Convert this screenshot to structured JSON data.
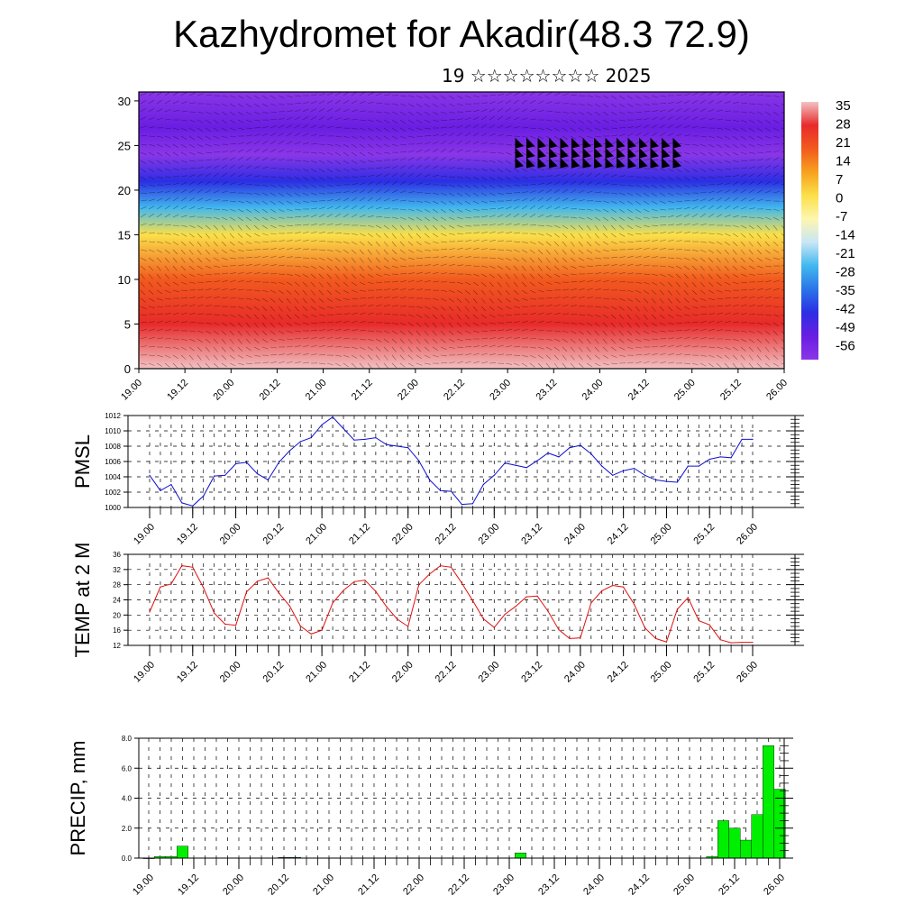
{
  "title": "Kazhydromet for Akadir(48.3 72.9)",
  "subtitle": "19 ☆☆☆☆☆☆☆☆ 2025",
  "time_labels": [
    "19.00",
    "19.12",
    "20.00",
    "20.12",
    "21.00",
    "21.12",
    "22.00",
    "22.12",
    "23.00",
    "23.12",
    "24.00",
    "24.12",
    "25.00",
    "25.12",
    "26.00"
  ],
  "chart_data": [
    {
      "type": "heatmap",
      "name": "cross-section",
      "title": "",
      "y_ticks": [
        "0",
        "5",
        "10",
        "15",
        "20",
        "25",
        "30"
      ],
      "ylim": [
        0,
        31
      ],
      "x_ticks": [
        "19.00",
        "19.12",
        "20.00",
        "20.12",
        "21.00",
        "21.12",
        "22.00",
        "22.12",
        "23.00",
        "23.12",
        "24.00",
        "24.12",
        "25.00",
        "25.12",
        "26.00"
      ],
      "colorbar_labels": [
        "35",
        "28",
        "21",
        "14",
        "7",
        "0",
        "-7",
        "-14",
        "-21",
        "-28",
        "-35",
        "-42",
        "-49",
        "-56"
      ],
      "colorbar_colors": [
        "#f2c2c4",
        "#e82a2a",
        "#f25a1e",
        "#f7a21e",
        "#fbe04a",
        "#fdf6b0",
        "#c8e6f6",
        "#42b8ee",
        "#2a74e8",
        "#2c2ee4",
        "#6a1ee2",
        "#8a36e8"
      ],
      "temperature_by_level": [
        {
          "level": 0,
          "value": 34
        },
        {
          "level": 5,
          "value": 28
        },
        {
          "level": 10,
          "value": 18
        },
        {
          "level": 15,
          "value": -2
        },
        {
          "level": 18,
          "value": -22
        },
        {
          "level": 21,
          "value": -38
        },
        {
          "level": 24,
          "value": -56
        },
        {
          "level": 27,
          "value": -50
        },
        {
          "level": 31,
          "value": -58
        }
      ]
    },
    {
      "type": "line",
      "name": "pmsl",
      "ylabel": "PMSL",
      "ylim": [
        1000,
        1012
      ],
      "y_ticks": [
        "1000",
        "1002",
        "1004",
        "1006",
        "1008",
        "1010",
        "1012"
      ],
      "x_ticks": [
        "19.00",
        "19.12",
        "20.00",
        "20.12",
        "21.00",
        "21.12",
        "22.00",
        "22.12",
        "23.00",
        "23.12",
        "24.00",
        "24.12",
        "25.00",
        "25.12",
        "26.00"
      ],
      "color": "#1010d0",
      "x": [
        0,
        3,
        6,
        9,
        12,
        15,
        18,
        21,
        24,
        27,
        30,
        33,
        36,
        39,
        42,
        45,
        48,
        51,
        54,
        57,
        60,
        63,
        66,
        69,
        72,
        75,
        78,
        81,
        84,
        87,
        90,
        93,
        96,
        99,
        102,
        105,
        108,
        111,
        114,
        117,
        120,
        123,
        126,
        129,
        132,
        135,
        138,
        141,
        144,
        147,
        150,
        153,
        156,
        159,
        162,
        165,
        168
      ],
      "values": [
        1004.2,
        1002.2,
        1003.0,
        1000.6,
        1000.2,
        1001.5,
        1004.1,
        1004.2,
        1005.7,
        1005.9,
        1004.4,
        1003.6,
        1005.9,
        1007.4,
        1008.6,
        1009.1,
        1010.8,
        1011.8,
        1010.3,
        1008.8,
        1008.9,
        1009.1,
        1008.2,
        1008.0,
        1007.8,
        1006.1,
        1003.6,
        1002.2,
        1002.1,
        1000.4,
        1000.5,
        1003.0,
        1004.2,
        1005.8,
        1005.5,
        1005.2,
        1006.1,
        1007.1,
        1006.6,
        1007.8,
        1008.1,
        1007.0,
        1005.4,
        1004.2,
        1004.8,
        1005.1,
        1004.2,
        1003.6,
        1003.4,
        1003.3,
        1005.4,
        1005.4,
        1006.3,
        1006.6,
        1006.5,
        1008.9,
        1008.9
      ]
    },
    {
      "type": "line",
      "name": "temp",
      "ylabel": "TEMP at 2 M",
      "ylim": [
        12,
        36
      ],
      "y_ticks": [
        "12",
        "16",
        "20",
        "24",
        "28",
        "32",
        "36"
      ],
      "x_ticks": [
        "19.00",
        "19.12",
        "20.00",
        "20.12",
        "21.00",
        "21.12",
        "22.00",
        "22.12",
        "23.00",
        "23.12",
        "24.00",
        "24.12",
        "25.00",
        "25.12",
        "26.00"
      ],
      "color": "#e01010",
      "x": [
        0,
        3,
        6,
        9,
        12,
        15,
        18,
        21,
        24,
        27,
        30,
        33,
        36,
        39,
        42,
        45,
        48,
        51,
        54,
        57,
        60,
        63,
        66,
        69,
        72,
        75,
        78,
        81,
        84,
        87,
        90,
        93,
        96,
        99,
        102,
        105,
        108,
        111,
        114,
        117,
        120,
        123,
        126,
        129,
        132,
        135,
        138,
        141,
        144,
        147,
        150,
        153,
        156,
        159,
        162,
        165,
        168
      ],
      "values": [
        20.8,
        27.4,
        28.2,
        33.0,
        32.6,
        27.2,
        20.5,
        17.6,
        17.3,
        26.1,
        28.9,
        29.8,
        25.8,
        22.4,
        17.1,
        15.0,
        16.0,
        23.2,
        26.5,
        28.8,
        29.2,
        26.2,
        22.2,
        18.9,
        17.0,
        28.0,
        30.8,
        33.0,
        32.6,
        28.4,
        23.8,
        19.0,
        16.7,
        20.2,
        22.3,
        24.8,
        25.0,
        21.0,
        16.1,
        13.8,
        14.0,
        23.2,
        26.4,
        27.8,
        27.4,
        22.8,
        16.6,
        13.8,
        12.9,
        21.5,
        24.6,
        18.5,
        17.4,
        13.5,
        12.7,
        12.8,
        12.8
      ]
    },
    {
      "type": "bar",
      "name": "precip",
      "ylabel": "PRECIP, mm",
      "ylim": [
        0,
        8
      ],
      "y_ticks": [
        "0.0",
        "2.0",
        "4.0",
        "6.0",
        "8.0"
      ],
      "x_ticks": [
        "19.00",
        "19.12",
        "20.00",
        "20.12",
        "21.00",
        "21.12",
        "22.00",
        "22.12",
        "23.00",
        "23.12",
        "24.00",
        "24.12",
        "25.00",
        "25.12",
        "26.00"
      ],
      "color": "#00ee00",
      "bar_width_hours": 3,
      "x": [
        0,
        3,
        6,
        9,
        36,
        39,
        99,
        150,
        153,
        156,
        159,
        162,
        165,
        168
      ],
      "values": [
        0.0,
        0.1,
        0.1,
        0.8,
        0.05,
        0.05,
        0.35,
        0.1,
        2.5,
        2.0,
        1.2,
        2.9,
        7.5,
        4.6
      ]
    }
  ]
}
